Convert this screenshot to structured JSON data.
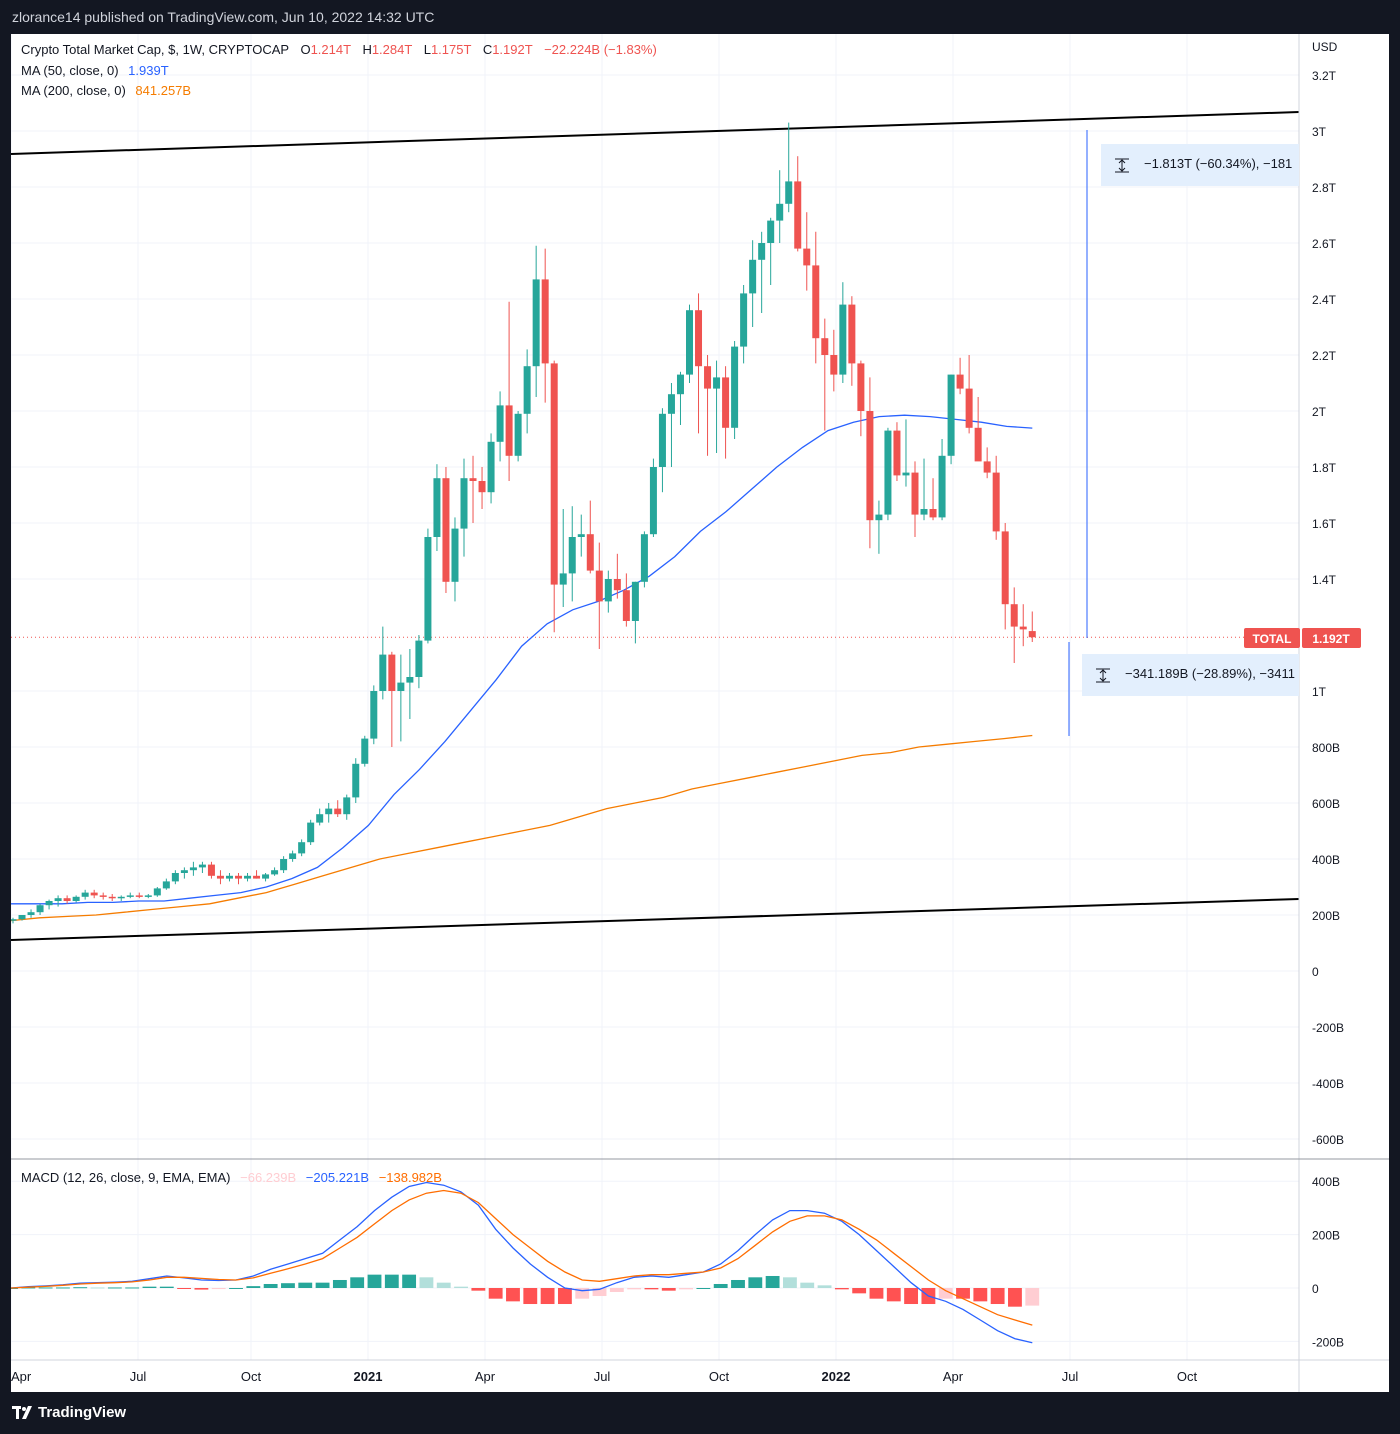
{
  "publisher_line": "zlorance14 published on TradingView.com, Jun 10, 2022 14:32 UTC",
  "brand": "TradingView",
  "legend": {
    "main": {
      "title": "Crypto Total Market Cap, $, 1W, CRYPTOCAP",
      "o_label": "O",
      "o_value": "1.214T",
      "h_label": "H",
      "h_value": "1.284T",
      "l_label": "L",
      "l_value": "1.175T",
      "c_label": "C",
      "c_value": "1.192T",
      "change": "−22.224B (−1.83%)"
    },
    "ma50": {
      "label": "MA (50, close, 0)",
      "value": "1.939T"
    },
    "ma200": {
      "label": "MA (200, close, 0)",
      "value": "841.257B"
    },
    "macd": {
      "label": "MACD (12, 26, close, 9, EMA, EMA)",
      "hist": "−66.239B",
      "macd": "−205.221B",
      "signal": "−138.982B"
    }
  },
  "price_axis": {
    "currency": "USD",
    "ticks": [
      "3.2T",
      "3T",
      "2.8T",
      "2.6T",
      "2.4T",
      "2.2T",
      "2T",
      "1.8T",
      "1.6T",
      "1.4T",
      "1T",
      "800B",
      "600B",
      "400B",
      "200B",
      "0",
      "-200B",
      "-400B",
      "-600B"
    ]
  },
  "macd_axis": {
    "ticks": [
      "400B",
      "200B",
      "0",
      "-200B"
    ]
  },
  "time_axis": {
    "ticks": [
      "Apr",
      "Jul",
      "Oct",
      "2021",
      "Apr",
      "Jul",
      "Oct",
      "2022",
      "Apr",
      "Jul",
      "Oct"
    ]
  },
  "current_price": {
    "symbol": "TOTAL",
    "value": "1.192T"
  },
  "annotations": {
    "measure_top": "−1.813T (−60.34%), −181",
    "measure_bottom": "−341.189B (−28.89%), −3411"
  },
  "colors": {
    "up": "#26a69a",
    "down": "#ef5350",
    "ma50": "#2962ff",
    "ma200": "#f57c00",
    "signal": "#ff6d00",
    "hist_pos_strong": "#26a69a",
    "hist_pos_weak": "#b2dfdb",
    "hist_neg_strong": "#ff5252",
    "hist_neg_weak": "#ffcdd2"
  },
  "chart_data": [
    {
      "type": "candlestick",
      "title": "Crypto Total Market Cap, $, 1W, CRYPTOCAP",
      "x_unit": "weeks, 2020-04 to 2022-06",
      "ylim": [
        -0.6,
        3.25
      ],
      "y_unit": "T USD",
      "candles": [
        [
          0.18,
          0.19,
          0.17,
          0.185
        ],
        [
          0.185,
          0.2,
          0.18,
          0.2
        ],
        [
          0.2,
          0.22,
          0.19,
          0.21
        ],
        [
          0.21,
          0.24,
          0.2,
          0.235
        ],
        [
          0.235,
          0.255,
          0.22,
          0.25
        ],
        [
          0.25,
          0.27,
          0.23,
          0.26
        ],
        [
          0.26,
          0.27,
          0.24,
          0.25
        ],
        [
          0.25,
          0.27,
          0.245,
          0.265
        ],
        [
          0.265,
          0.29,
          0.255,
          0.28
        ],
        [
          0.28,
          0.29,
          0.26,
          0.27
        ],
        [
          0.27,
          0.28,
          0.255,
          0.265
        ],
        [
          0.265,
          0.275,
          0.25,
          0.26
        ],
        [
          0.26,
          0.27,
          0.25,
          0.265
        ],
        [
          0.265,
          0.28,
          0.26,
          0.27
        ],
        [
          0.27,
          0.28,
          0.26,
          0.265
        ],
        [
          0.265,
          0.275,
          0.26,
          0.27
        ],
        [
          0.27,
          0.3,
          0.265,
          0.295
        ],
        [
          0.295,
          0.33,
          0.29,
          0.32
        ],
        [
          0.32,
          0.36,
          0.31,
          0.35
        ],
        [
          0.35,
          0.37,
          0.33,
          0.36
        ],
        [
          0.36,
          0.39,
          0.34,
          0.37
        ],
        [
          0.37,
          0.39,
          0.35,
          0.38
        ],
        [
          0.38,
          0.39,
          0.33,
          0.34
        ],
        [
          0.34,
          0.36,
          0.31,
          0.33
        ],
        [
          0.33,
          0.35,
          0.32,
          0.34
        ],
        [
          0.34,
          0.35,
          0.31,
          0.33
        ],
        [
          0.33,
          0.35,
          0.32,
          0.34
        ],
        [
          0.34,
          0.36,
          0.33,
          0.33
        ],
        [
          0.33,
          0.35,
          0.32,
          0.345
        ],
        [
          0.345,
          0.37,
          0.34,
          0.36
        ],
        [
          0.36,
          0.41,
          0.35,
          0.4
        ],
        [
          0.4,
          0.43,
          0.39,
          0.42
        ],
        [
          0.42,
          0.47,
          0.41,
          0.46
        ],
        [
          0.46,
          0.54,
          0.45,
          0.53
        ],
        [
          0.53,
          0.58,
          0.52,
          0.56
        ],
        [
          0.56,
          0.6,
          0.53,
          0.58
        ],
        [
          0.58,
          0.61,
          0.55,
          0.56
        ],
        [
          0.56,
          0.63,
          0.54,
          0.62
        ],
        [
          0.62,
          0.76,
          0.6,
          0.74
        ],
        [
          0.74,
          0.84,
          0.73,
          0.83
        ],
        [
          0.83,
          1.02,
          0.81,
          1.0
        ],
        [
          1.0,
          1.23,
          0.97,
          1.13
        ],
        [
          1.13,
          1.14,
          0.8,
          1.0
        ],
        [
          1.0,
          1.13,
          0.82,
          1.03
        ],
        [
          1.03,
          1.15,
          0.9,
          1.05
        ],
        [
          1.05,
          1.2,
          1.01,
          1.18
        ],
        [
          1.18,
          1.58,
          1.17,
          1.55
        ],
        [
          1.55,
          1.81,
          1.5,
          1.76
        ],
        [
          1.76,
          1.8,
          1.35,
          1.39
        ],
        [
          1.39,
          1.62,
          1.32,
          1.58
        ],
        [
          1.58,
          1.83,
          1.48,
          1.76
        ],
        [
          1.76,
          1.84,
          1.6,
          1.75
        ],
        [
          1.75,
          1.8,
          1.65,
          1.71
        ],
        [
          1.71,
          1.92,
          1.67,
          1.89
        ],
        [
          1.89,
          2.07,
          1.82,
          2.02
        ],
        [
          2.02,
          2.39,
          1.75,
          1.84
        ],
        [
          1.84,
          2.0,
          1.82,
          1.99
        ],
        [
          1.99,
          2.22,
          1.92,
          2.16
        ],
        [
          2.16,
          2.59,
          2.05,
          2.47
        ],
        [
          2.47,
          2.58,
          2.03,
          2.17
        ],
        [
          2.17,
          2.18,
          1.21,
          1.38
        ],
        [
          1.38,
          1.65,
          1.3,
          1.42
        ],
        [
          1.42,
          1.66,
          1.32,
          1.55
        ],
        [
          1.55,
          1.63,
          1.48,
          1.56
        ],
        [
          1.56,
          1.68,
          1.42,
          1.43
        ],
        [
          1.43,
          1.53,
          1.15,
          1.32
        ],
        [
          1.32,
          1.43,
          1.28,
          1.4
        ],
        [
          1.4,
          1.49,
          1.33,
          1.36
        ],
        [
          1.36,
          1.42,
          1.23,
          1.25
        ],
        [
          1.25,
          1.39,
          1.17,
          1.39
        ],
        [
          1.39,
          1.57,
          1.37,
          1.56
        ],
        [
          1.56,
          1.83,
          1.55,
          1.8
        ],
        [
          1.8,
          2.01,
          1.71,
          1.99
        ],
        [
          1.99,
          2.1,
          1.8,
          2.06
        ],
        [
          2.06,
          2.14,
          1.95,
          2.13
        ],
        [
          2.13,
          2.38,
          2.1,
          2.36
        ],
        [
          2.36,
          2.42,
          1.92,
          2.16
        ],
        [
          2.16,
          2.2,
          1.84,
          2.08
        ],
        [
          2.08,
          2.18,
          1.85,
          2.12
        ],
        [
          2.12,
          2.16,
          1.83,
          1.94
        ],
        [
          1.94,
          2.25,
          1.9,
          2.23
        ],
        [
          2.23,
          2.45,
          2.17,
          2.42
        ],
        [
          2.42,
          2.61,
          2.3,
          2.54
        ],
        [
          2.54,
          2.64,
          2.35,
          2.6
        ],
        [
          2.6,
          2.69,
          2.45,
          2.68
        ],
        [
          2.68,
          2.86,
          2.6,
          2.74
        ],
        [
          2.74,
          3.03,
          2.71,
          2.82
        ],
        [
          2.82,
          2.91,
          2.57,
          2.58
        ],
        [
          2.58,
          2.71,
          2.43,
          2.52
        ],
        [
          2.52,
          2.64,
          2.17,
          2.26
        ],
        [
          2.26,
          2.33,
          1.93,
          2.2
        ],
        [
          2.2,
          2.29,
          2.07,
          2.13
        ],
        [
          2.13,
          2.46,
          2.1,
          2.38
        ],
        [
          2.38,
          2.41,
          2.09,
          2.17
        ],
        [
          2.17,
          2.18,
          1.91,
          2.0
        ],
        [
          2.0,
          2.12,
          1.51,
          1.61
        ],
        [
          1.61,
          1.68,
          1.49,
          1.63
        ],
        [
          1.63,
          1.94,
          1.61,
          1.93
        ],
        [
          1.93,
          1.96,
          1.75,
          1.77
        ],
        [
          1.77,
          1.97,
          1.73,
          1.78
        ],
        [
          1.78,
          1.82,
          1.55,
          1.63
        ],
        [
          1.63,
          1.83,
          1.61,
          1.65
        ],
        [
          1.65,
          1.76,
          1.61,
          1.62
        ],
        [
          1.62,
          1.9,
          1.61,
          1.84
        ],
        [
          1.84,
          2.13,
          1.81,
          2.13
        ],
        [
          2.13,
          2.19,
          2.06,
          2.08
        ],
        [
          2.08,
          2.2,
          1.92,
          1.94
        ],
        [
          1.94,
          2.05,
          1.85,
          1.82
        ],
        [
          1.82,
          1.87,
          1.76,
          1.78
        ],
        [
          1.78,
          1.84,
          1.54,
          1.57
        ],
        [
          1.57,
          1.6,
          1.22,
          1.31
        ],
        [
          1.31,
          1.37,
          1.1,
          1.23
        ],
        [
          1.23,
          1.31,
          1.16,
          1.22
        ],
        [
          1.214,
          1.284,
          1.175,
          1.192
        ]
      ],
      "ma50": [
        0.24,
        0.24,
        0.24,
        0.245,
        0.245,
        0.25,
        0.25,
        0.26,
        0.27,
        0.28,
        0.3,
        0.33,
        0.37,
        0.44,
        0.52,
        0.63,
        0.72,
        0.82,
        0.93,
        1.04,
        1.16,
        1.24,
        1.29,
        1.32,
        1.36,
        1.41,
        1.48,
        1.57,
        1.64,
        1.72,
        1.8,
        1.87,
        1.93,
        1.96,
        1.98,
        1.985,
        1.98,
        1.97,
        1.96,
        1.945,
        1.939
      ],
      "ma200": [
        0.18,
        0.19,
        0.195,
        0.2,
        0.21,
        0.22,
        0.23,
        0.24,
        0.26,
        0.28,
        0.31,
        0.34,
        0.37,
        0.4,
        0.42,
        0.44,
        0.46,
        0.48,
        0.5,
        0.52,
        0.55,
        0.58,
        0.6,
        0.62,
        0.65,
        0.67,
        0.69,
        0.71,
        0.73,
        0.75,
        0.77,
        0.78,
        0.8,
        0.81,
        0.82,
        0.83,
        0.841
      ]
    },
    {
      "type": "line",
      "title": "MACD (12, 26, close, 9, EMA, EMA)",
      "ylim": [
        -250,
        450
      ],
      "y_unit": "B USD",
      "series": [
        {
          "name": "MACD",
          "values": [
            0,
            5,
            8,
            12,
            18,
            20,
            22,
            25,
            35,
            45,
            38,
            30,
            28,
            30,
            45,
            70,
            90,
            110,
            130,
            180,
            230,
            290,
            340,
            380,
            395,
            385,
            360,
            310,
            220,
            150,
            90,
            40,
            0,
            -10,
            -5,
            20,
            40,
            45,
            40,
            50,
            60,
            90,
            140,
            200,
            255,
            290,
            290,
            280,
            250,
            200,
            140,
            80,
            20,
            -30,
            -50,
            -80,
            -120,
            -160,
            -190,
            -205
          ]
        },
        {
          "name": "Signal",
          "values": [
            0,
            3,
            6,
            10,
            15,
            18,
            20,
            23,
            30,
            40,
            40,
            36,
            32,
            30,
            38,
            55,
            72,
            90,
            110,
            150,
            190,
            240,
            290,
            330,
            355,
            365,
            355,
            320,
            260,
            200,
            150,
            100,
            60,
            30,
            25,
            35,
            45,
            50,
            50,
            55,
            60,
            75,
            110,
            160,
            210,
            250,
            270,
            270,
            255,
            220,
            180,
            130,
            80,
            30,
            -10,
            -40,
            -70,
            -100,
            -120,
            -139
          ]
        },
        {
          "name": "Histogram",
          "values": [
            0,
            2,
            2,
            2,
            3,
            2,
            2,
            2,
            5,
            5,
            -2,
            -6,
            -4,
            0,
            7,
            15,
            18,
            20,
            20,
            30,
            40,
            50,
            50,
            50,
            40,
            20,
            5,
            -10,
            -40,
            -50,
            -60,
            -60,
            -60,
            -40,
            -30,
            -15,
            -5,
            -5,
            -10,
            -5,
            0,
            15,
            30,
            40,
            45,
            40,
            20,
            10,
            -5,
            -20,
            -40,
            -50,
            -60,
            -60,
            -40,
            -40,
            -50,
            -60,
            -70,
            -66
          ]
        }
      ]
    }
  ]
}
